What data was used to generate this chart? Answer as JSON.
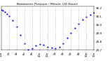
{
  "title": "Barometric Pressure / Minute (24 Hours)",
  "bg_color": "#ffffff",
  "plot_bg_color": "#ffffff",
  "line_color": "#0000ff",
  "grid_color": "#aaaaaa",
  "tick_color": "#000000",
  "x_min": 0,
  "x_max": 1440,
  "y_min": 29.7,
  "y_max": 30.22,
  "y_ticks": [
    29.7,
    29.8,
    29.9,
    30.0,
    30.1,
    30.2
  ],
  "y_tick_labels": [
    "29.7",
    "29.8",
    "29.9",
    "30.0",
    "30.1",
    "30.2"
  ],
  "x_tick_positions": [
    0,
    120,
    240,
    360,
    480,
    600,
    720,
    840,
    960,
    1080,
    1200,
    1320,
    1440
  ],
  "x_tick_labels": [
    "12a",
    "2a",
    "4a",
    "6a",
    "8a",
    "10a",
    "12p",
    "2p",
    "4p",
    "6p",
    "8p",
    "10p",
    "12a"
  ],
  "vgrid_positions": [
    120,
    240,
    360,
    480,
    600,
    720,
    840,
    960,
    1080,
    1200,
    1320
  ],
  "data_x": [
    0,
    30,
    60,
    90,
    120,
    180,
    240,
    300,
    360,
    420,
    480,
    540,
    600,
    660,
    720,
    780,
    840,
    900,
    960,
    1020,
    1080,
    1140,
    1200,
    1260,
    1320,
    1380,
    1440
  ],
  "data_y": [
    30.18,
    30.17,
    30.15,
    30.13,
    30.1,
    30.05,
    29.98,
    29.88,
    29.78,
    29.7,
    29.72,
    29.75,
    29.77,
    29.76,
    29.74,
    29.73,
    29.72,
    29.74,
    29.78,
    29.84,
    29.9,
    29.96,
    30.01,
    30.06,
    30.09,
    30.12,
    30.14
  ]
}
